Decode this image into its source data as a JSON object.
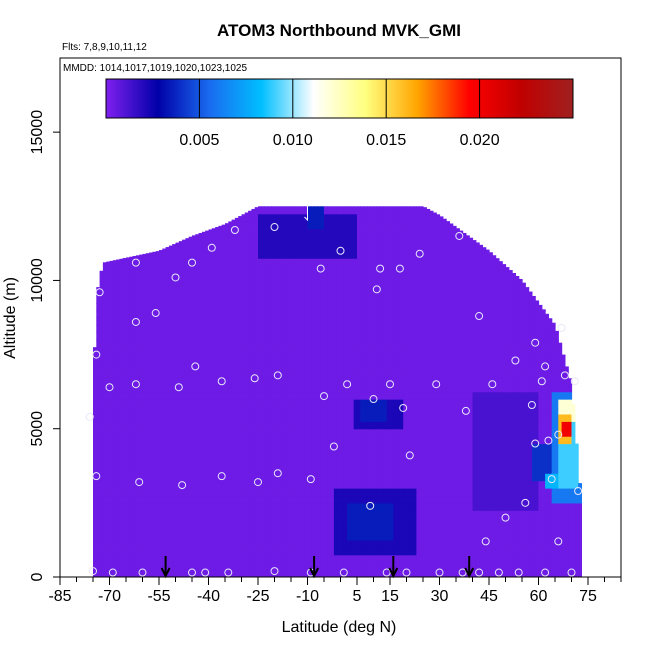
{
  "chart_data": {
    "type": "heatmap",
    "title": "ATOM3 Northbound MVK_GMI",
    "flights_note": "Flts: 7,8,9,10,11,12",
    "dates_note": "MMDD: 1014,1017,1019,1020,1023,1025",
    "xlabel": "Latitude (deg N)",
    "ylabel": "Altitude (m)",
    "xlim": [
      -85,
      85
    ],
    "ylim": [
      0,
      17500
    ],
    "x_tick_labels": [
      "-85",
      "-70",
      "-55",
      "-40",
      "-25",
      "-10",
      "5",
      "15",
      "30",
      "45",
      "60",
      "75"
    ],
    "x_tick_values": [
      -85,
      -70,
      -55,
      -40,
      -25,
      -10,
      5,
      15,
      30,
      45,
      60,
      75
    ],
    "y_tick_labels": [
      "0",
      "5000",
      "10000",
      "15000"
    ],
    "y_tick_values": [
      0,
      5000,
      10000,
      15000
    ],
    "colorbar": {
      "range": [
        0,
        0.025
      ],
      "tick_labels": [
        "0.005",
        "0.010",
        "0.015",
        "0.020"
      ],
      "tick_values": [
        0.005,
        0.01,
        0.015,
        0.02
      ],
      "colors": [
        "#8020f0",
        "#0000a8",
        "#1a6cf0",
        "#00bfff",
        "#ffffff",
        "#ffff80",
        "#ffa500",
        "#ff0000",
        "#c00000",
        "#a02020"
      ]
    },
    "background_value": 0.0004,
    "domain_profile": [
      {
        "lat": -75,
        "alt": 6000
      },
      {
        "lat": -74,
        "alt": 9500
      },
      {
        "lat": -72,
        "alt": 10600
      },
      {
        "lat": -55,
        "alt": 11000
      },
      {
        "lat": -45,
        "alt": 11500
      },
      {
        "lat": -35,
        "alt": 11900
      },
      {
        "lat": -25,
        "alt": 12500
      },
      {
        "lat": -5,
        "alt": 12500
      },
      {
        "lat": 10,
        "alt": 12500
      },
      {
        "lat": 25,
        "alt": 12500
      },
      {
        "lat": 30,
        "alt": 12200
      },
      {
        "lat": 45,
        "alt": 11000
      },
      {
        "lat": 55,
        "alt": 10000
      },
      {
        "lat": 65,
        "alt": 8500
      },
      {
        "lat": 70,
        "alt": 6500
      },
      {
        "lat": 73,
        "alt": 2500
      }
    ],
    "features": [
      {
        "lat": [
          -25,
          5
        ],
        "alt": [
          10700,
          12300
        ],
        "value": 0.002
      },
      {
        "lat": [
          -10,
          -5
        ],
        "alt": [
          11800,
          12400
        ],
        "value": 0.0035
      },
      {
        "lat": [
          4,
          19
        ],
        "alt": [
          5000,
          5900
        ],
        "value": 0.0022
      },
      {
        "lat": [
          6,
          14
        ],
        "alt": [
          5300,
          5900
        ],
        "value": 0.0035
      },
      {
        "lat": [
          -2,
          23
        ],
        "alt": [
          700,
          2900
        ],
        "value": 0.0022
      },
      {
        "lat": [
          2,
          16
        ],
        "alt": [
          1200,
          2600
        ],
        "value": 0.0035
      },
      {
        "lat": [
          40,
          60
        ],
        "alt": [
          2200,
          6300
        ],
        "value": 0.0012
      },
      {
        "lat": [
          58,
          70
        ],
        "alt": [
          3200,
          4600
        ],
        "value": 0.004
      },
      {
        "lat": [
          64,
          73
        ],
        "alt": [
          2600,
          6200
        ],
        "value": 0.006
      },
      {
        "lat": [
          66,
          72
        ],
        "alt": [
          3000,
          6000
        ],
        "value": 0.009
      },
      {
        "lat": [
          66,
          71
        ],
        "alt": [
          5200,
          6000
        ],
        "value": 0.012
      },
      {
        "lat": [
          66,
          70
        ],
        "alt": [
          4500,
          5500
        ],
        "value": 0.016
      },
      {
        "lat": [
          67,
          69.5
        ],
        "alt": [
          4800,
          5300
        ],
        "value": 0.02
      },
      {
        "lat": [
          68,
          71
        ],
        "alt": [
          4300,
          4700
        ],
        "value": 0.009
      },
      {
        "lat": [
          62,
          70
        ],
        "alt": [
          3100,
          3500
        ],
        "value": 0.008
      }
    ],
    "sample_points": [
      {
        "lat": -76,
        "alt": 5400
      },
      {
        "lat": -74,
        "alt": 7500
      },
      {
        "lat": -74,
        "alt": 3400
      },
      {
        "lat": -73,
        "alt": 9600
      },
      {
        "lat": -70,
        "alt": 6400
      },
      {
        "lat": -62,
        "alt": 10600
      },
      {
        "lat": -62,
        "alt": 8600
      },
      {
        "lat": -62,
        "alt": 6500
      },
      {
        "lat": -61,
        "alt": 3200
      },
      {
        "lat": -56,
        "alt": 8900
      },
      {
        "lat": -50,
        "alt": 10100
      },
      {
        "lat": -49,
        "alt": 6400
      },
      {
        "lat": -48,
        "alt": 3100
      },
      {
        "lat": -45,
        "alt": 10600
      },
      {
        "lat": -44,
        "alt": 7100
      },
      {
        "lat": -39,
        "alt": 11100
      },
      {
        "lat": -36,
        "alt": 6600
      },
      {
        "lat": -36,
        "alt": 3400
      },
      {
        "lat": -32,
        "alt": 11700
      },
      {
        "lat": -26,
        "alt": 6700
      },
      {
        "lat": -25,
        "alt": 3200
      },
      {
        "lat": -20,
        "alt": 11800
      },
      {
        "lat": -19,
        "alt": 6800
      },
      {
        "lat": -19,
        "alt": 3500
      },
      {
        "lat": -9,
        "alt": 3300
      },
      {
        "lat": -6,
        "alt": 10400
      },
      {
        "lat": -5,
        "alt": 6100
      },
      {
        "lat": -2,
        "alt": 4400
      },
      {
        "lat": 0,
        "alt": 11000
      },
      {
        "lat": 2,
        "alt": 6500
      },
      {
        "lat": 9,
        "alt": 2400
      },
      {
        "lat": 10,
        "alt": 6000
      },
      {
        "lat": 11,
        "alt": 9700
      },
      {
        "lat": 12,
        "alt": 10400
      },
      {
        "lat": 15,
        "alt": 6500
      },
      {
        "lat": 18,
        "alt": 10400
      },
      {
        "lat": 19,
        "alt": 5700
      },
      {
        "lat": 21,
        "alt": 4100
      },
      {
        "lat": 24,
        "alt": 10900
      },
      {
        "lat": 29,
        "alt": 6500
      },
      {
        "lat": 36,
        "alt": 11500
      },
      {
        "lat": 38,
        "alt": 5600
      },
      {
        "lat": 42,
        "alt": 8800
      },
      {
        "lat": 44,
        "alt": 1200
      },
      {
        "lat": 46,
        "alt": 6500
      },
      {
        "lat": 50,
        "alt": 2000
      },
      {
        "lat": 53,
        "alt": 7300
      },
      {
        "lat": 56,
        "alt": 2500
      },
      {
        "lat": 58,
        "alt": 5800
      },
      {
        "lat": 59,
        "alt": 7900
      },
      {
        "lat": 59,
        "alt": 4500
      },
      {
        "lat": 61,
        "alt": 6600
      },
      {
        "lat": 62,
        "alt": 7100
      },
      {
        "lat": 63,
        "alt": 4600
      },
      {
        "lat": 64,
        "alt": 3300
      },
      {
        "lat": 66,
        "alt": 4800
      },
      {
        "lat": 66,
        "alt": 1200
      },
      {
        "lat": 67,
        "alt": 8400
      },
      {
        "lat": 68,
        "alt": 6800
      },
      {
        "lat": 71,
        "alt": 6600
      },
      {
        "lat": 72,
        "alt": 2900
      },
      {
        "lat": -75,
        "alt": 200
      },
      {
        "lat": -69,
        "alt": 150
      },
      {
        "lat": -60,
        "alt": 150
      },
      {
        "lat": -45,
        "alt": 150
      },
      {
        "lat": -41,
        "alt": 150
      },
      {
        "lat": -34,
        "alt": 150
      },
      {
        "lat": -20,
        "alt": 200
      },
      {
        "lat": -9,
        "alt": 150
      },
      {
        "lat": 1,
        "alt": 150
      },
      {
        "lat": 14,
        "alt": 150
      },
      {
        "lat": 20,
        "alt": 150
      },
      {
        "lat": 30,
        "alt": 150
      },
      {
        "lat": 37,
        "alt": 150
      },
      {
        "lat": 42,
        "alt": 150
      },
      {
        "lat": 48,
        "alt": 150
      },
      {
        "lat": 54,
        "alt": 150
      },
      {
        "lat": 62,
        "alt": 150
      },
      {
        "lat": 70,
        "alt": 150
      }
    ],
    "flight_markers_lat": [
      -53,
      -8,
      16,
      39
    ],
    "top_marker_lat": -10
  }
}
